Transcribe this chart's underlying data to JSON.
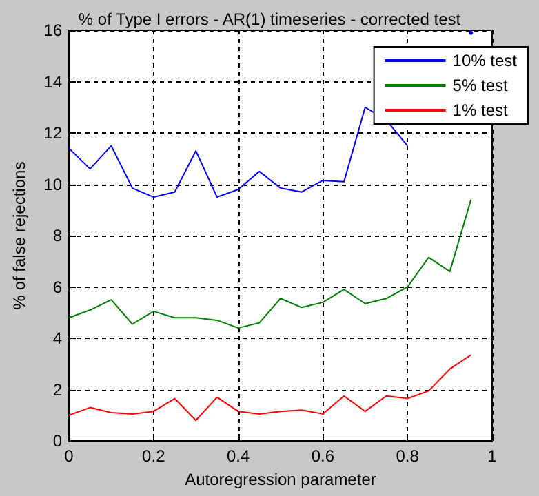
{
  "chart_data": {
    "type": "line",
    "title": "% of Type I errors - AR(1) timeseries - corrected test",
    "xlabel": "Autoregression parameter",
    "ylabel": "% of false rejections",
    "x": [
      0,
      0.05,
      0.1,
      0.15,
      0.2,
      0.25,
      0.3,
      0.35,
      0.4,
      0.45,
      0.5,
      0.55,
      0.6,
      0.65,
      0.7,
      0.75,
      0.8,
      0.85,
      0.9,
      0.95
    ],
    "series": [
      {
        "name": "10% test",
        "color": "#0000ff",
        "values": [
          11.4,
          10.6,
          11.5,
          9.85,
          9.5,
          9.7,
          11.3,
          9.5,
          9.8,
          10.5,
          9.85,
          9.7,
          10.15,
          10.1,
          13.0,
          12.5,
          11.5,
          null,
          null,
          15.9
        ]
      },
      {
        "name": "5% test",
        "color": "#008000",
        "values": [
          4.8,
          5.1,
          5.5,
          4.55,
          5.05,
          4.8,
          4.8,
          4.7,
          4.4,
          4.6,
          5.55,
          5.2,
          5.4,
          5.9,
          5.35,
          5.55,
          6.0,
          7.15,
          6.6,
          9.4
        ]
      },
      {
        "name": "1% test",
        "color": "#ff0000",
        "values": [
          1.0,
          1.3,
          1.1,
          1.05,
          1.15,
          1.65,
          0.8,
          1.7,
          1.15,
          1.05,
          1.15,
          1.2,
          1.05,
          1.75,
          1.15,
          1.75,
          1.65,
          1.95,
          2.8,
          3.35
        ]
      }
    ],
    "xlim": [
      0,
      1
    ],
    "xticks": [
      0,
      0.2,
      0.4,
      0.6,
      0.8,
      1
    ],
    "ylim": [
      0,
      16
    ],
    "yticks": [
      0,
      2,
      4,
      6,
      8,
      10,
      12,
      14,
      16
    ],
    "grid": true,
    "legend": "top right",
    "marker": "none",
    "line_style": "solid"
  }
}
